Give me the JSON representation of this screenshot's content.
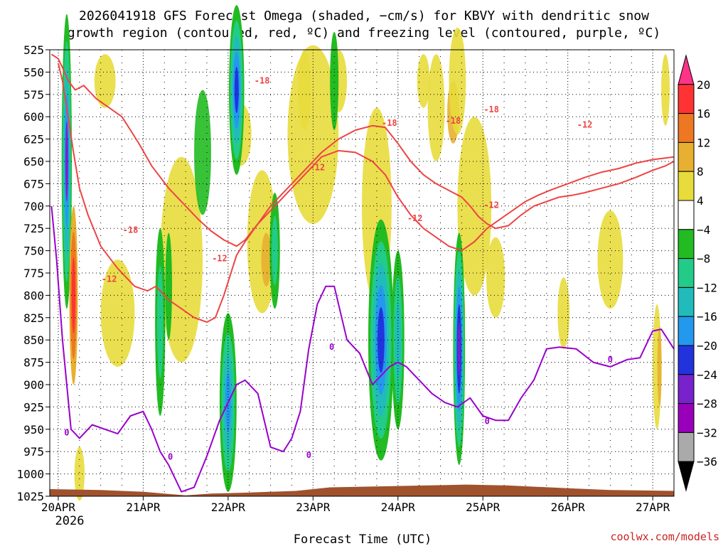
{
  "chart_data": {
    "type": "heatmap",
    "title_line1": "2026041918 GFS Forecast Omega (shaded, −cm/s) for KBVY with dendritic snow",
    "title_line2": "growth region (contoured, red, ºC) and freezing level (contoured, purple, ºC)",
    "xlabel": "Forecast Time (UTC)",
    "x_ticks": [
      "20APR",
      "21APR",
      "22APR",
      "23APR",
      "24APR",
      "25APR",
      "26APR",
      "27APR"
    ],
    "x_ticks_day": [
      0,
      1,
      2,
      3,
      4,
      5,
      6,
      7
    ],
    "x_range_day": [
      -0.1,
      7.25
    ],
    "x_year_label": "2026",
    "y_ticks": [
      525,
      550,
      575,
      600,
      625,
      650,
      675,
      700,
      725,
      750,
      775,
      800,
      825,
      850,
      875,
      900,
      925,
      950,
      975,
      1000,
      1025
    ],
    "y_range": [
      525,
      1025
    ],
    "grid": true,
    "colorbar": {
      "labels": [
        "20",
        "16",
        "12",
        "8",
        "4",
        "−4",
        "−8",
        "−12",
        "−16",
        "−20",
        "−24",
        "−28",
        "−32",
        "−36"
      ],
      "levels": [
        24,
        20,
        16,
        12,
        8,
        4,
        -4,
        -8,
        -12,
        -16,
        -20,
        -24,
        -28,
        -32,
        -36
      ],
      "colors": [
        "#ff3388",
        "#ff3333",
        "#ee7722",
        "#e8b030",
        "#e8dc3c",
        "#ffffff",
        "#22bb22",
        "#22cc88",
        "#22bbbb",
        "#2299ee",
        "#2233dd",
        "#7722cc",
        "#9900bb",
        "#aaaaaa",
        "#000000"
      ]
    },
    "red_contour_labels": [
      "-18",
      "-18",
      "-18",
      "-18",
      "-18",
      "-12",
      "-12",
      "-12",
      "-12",
      "-12",
      "-12"
    ],
    "red_label_positions": [
      [
        0.85,
        730
      ],
      [
        2.4,
        563
      ],
      [
        3.9,
        610
      ],
      [
        4.65,
        608
      ],
      [
        5.1,
        595
      ],
      [
        0.6,
        785
      ],
      [
        1.9,
        762
      ],
      [
        3.05,
        660
      ],
      [
        4.2,
        717
      ],
      [
        5.1,
        702
      ],
      [
        6.2,
        612
      ]
    ],
    "purple_contour_labels": [
      "0",
      "0",
      "0",
      "0",
      "0",
      "0"
    ],
    "purple_label_positions": [
      [
        0.1,
        957
      ],
      [
        1.32,
        984
      ],
      [
        2.95,
        982
      ],
      [
        3.22,
        861
      ],
      [
        5.05,
        944
      ],
      [
        6.5,
        875
      ]
    ],
    "red_series": [
      {
        "x": [
          -0.08,
          0.0,
          0.05,
          0.12,
          0.2,
          0.3,
          0.45,
          0.6,
          0.75,
          0.85,
          0.95,
          1.1,
          1.3,
          1.5,
          1.65,
          1.8,
          1.95,
          2.1,
          2.2,
          2.35,
          2.5,
          2.7,
          2.9,
          3.1,
          3.3,
          3.5,
          3.7,
          3.85,
          4.0,
          4.15,
          4.3,
          4.45,
          4.55,
          4.65,
          4.75,
          4.85,
          4.95,
          5.05,
          5.15,
          5.3,
          5.45,
          5.6,
          5.75,
          5.9,
          6.05,
          6.2,
          6.4,
          6.6,
          6.8,
          7.0,
          7.15,
          7.25
        ],
        "y": [
          530,
          535,
          545,
          560,
          570,
          565,
          580,
          590,
          600,
          615,
          630,
          655,
          680,
          700,
          715,
          728,
          738,
          745,
          738,
          720,
          700,
          680,
          660,
          640,
          625,
          615,
          610,
          612,
          630,
          650,
          665,
          675,
          680,
          685,
          690,
          700,
          712,
          720,
          725,
          722,
          710,
          700,
          695,
          690,
          688,
          685,
          680,
          675,
          668,
          660,
          655,
          650
        ]
      },
      {
        "x": [
          0.0,
          0.05,
          0.1,
          0.18,
          0.25,
          0.35,
          0.5,
          0.7,
          0.9,
          1.05,
          1.15,
          1.3,
          1.45,
          1.6,
          1.75,
          1.85,
          1.95,
          2.05,
          2.1,
          2.2,
          2.35,
          2.55,
          2.75,
          2.95,
          3.1,
          3.3,
          3.5,
          3.7,
          3.85,
          4.0,
          4.15,
          4.3,
          4.45,
          4.6,
          4.75,
          4.9,
          5.05,
          5.2,
          5.35,
          5.5,
          5.65,
          5.8,
          6.0,
          6.2,
          6.4,
          6.6,
          6.8,
          7.0,
          7.25
        ],
        "y": [
          540,
          560,
          590,
          640,
          680,
          710,
          745,
          770,
          790,
          795,
          790,
          805,
          815,
          825,
          830,
          825,
          800,
          770,
          755,
          740,
          720,
          700,
          680,
          660,
          645,
          638,
          640,
          650,
          665,
          690,
          710,
          725,
          735,
          745,
          750,
          740,
          725,
          715,
          705,
          695,
          688,
          682,
          675,
          668,
          662,
          658,
          652,
          648,
          645
        ]
      }
    ],
    "purple_series": [
      {
        "x": [
          -0.08,
          -0.02,
          0.05,
          0.1,
          0.15,
          0.25,
          0.4,
          0.55,
          0.7,
          0.85,
          1.0,
          1.1,
          1.2,
          1.3,
          1.45,
          1.6,
          1.75,
          1.9,
          2.0,
          2.1,
          2.2,
          2.35,
          2.5,
          2.65,
          2.75,
          2.85,
          2.95,
          3.05,
          3.15,
          3.25,
          3.4,
          3.55,
          3.7,
          3.8,
          3.9,
          4.0,
          4.1,
          4.25,
          4.4,
          4.55,
          4.7,
          4.85,
          5.0,
          5.15,
          5.3,
          5.45,
          5.6,
          5.75,
          5.9,
          6.1,
          6.3,
          6.5,
          6.7,
          6.85,
          7.0,
          7.1,
          7.25
        ],
        "y": [
          700,
          760,
          850,
          900,
          950,
          960,
          945,
          950,
          955,
          935,
          930,
          950,
          975,
          990,
          1020,
          1015,
          980,
          940,
          920,
          900,
          895,
          910,
          970,
          975,
          960,
          930,
          860,
          810,
          790,
          790,
          850,
          865,
          900,
          890,
          880,
          875,
          880,
          895,
          910,
          920,
          925,
          915,
          935,
          940,
          940,
          915,
          895,
          860,
          858,
          860,
          875,
          880,
          872,
          870,
          840,
          838,
          860
        ]
      }
    ]
  },
  "footer": {
    "credit": "coolwx.com/models"
  }
}
